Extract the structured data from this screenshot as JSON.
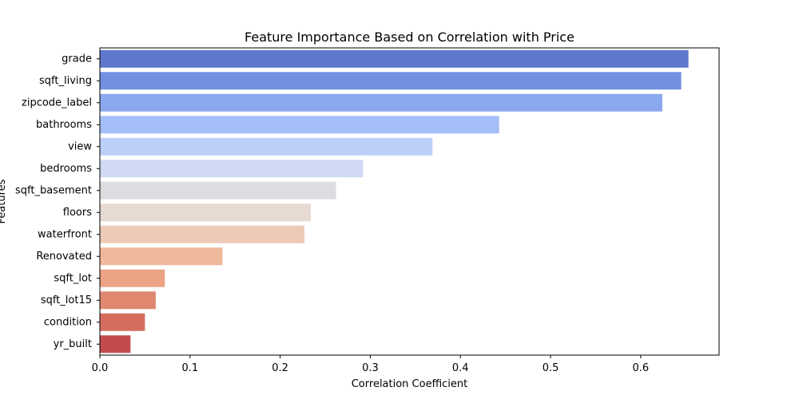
{
  "chart_data": {
    "type": "bar",
    "orientation": "horizontal",
    "title": "Feature Importance Based on Correlation with Price",
    "xlabel": "Correlation Coefficient",
    "ylabel": "Features",
    "categories": [
      "grade",
      "sqft_living",
      "zipcode_label",
      "bathrooms",
      "view",
      "bedrooms",
      "sqft_basement",
      "floors",
      "waterfront",
      "Renovated",
      "sqft_lot",
      "sqft_lot15",
      "condition",
      "yr_built"
    ],
    "values": [
      0.653,
      0.645,
      0.624,
      0.443,
      0.369,
      0.292,
      0.262,
      0.234,
      0.227,
      0.136,
      0.072,
      0.062,
      0.05,
      0.034
    ],
    "xlim": [
      0,
      0.687
    ],
    "xticks": [
      0.0,
      0.1,
      0.2,
      0.3,
      0.4,
      0.5,
      0.6
    ],
    "xtick_labels": [
      "0.0",
      "0.1",
      "0.2",
      "0.3",
      "0.4",
      "0.5",
      "0.6"
    ],
    "colors": [
      "#5f78ce",
      "#7190df",
      "#8aa8ee",
      "#a4bff7",
      "#bbcff8",
      "#cfdaf2",
      "#dcdde0",
      "#e6dad3",
      "#edcab7",
      "#f0b89c",
      "#eba285",
      "#e0886f",
      "#d46d5e",
      "#c24c4b"
    ],
    "grid": false,
    "legend": "none"
  }
}
